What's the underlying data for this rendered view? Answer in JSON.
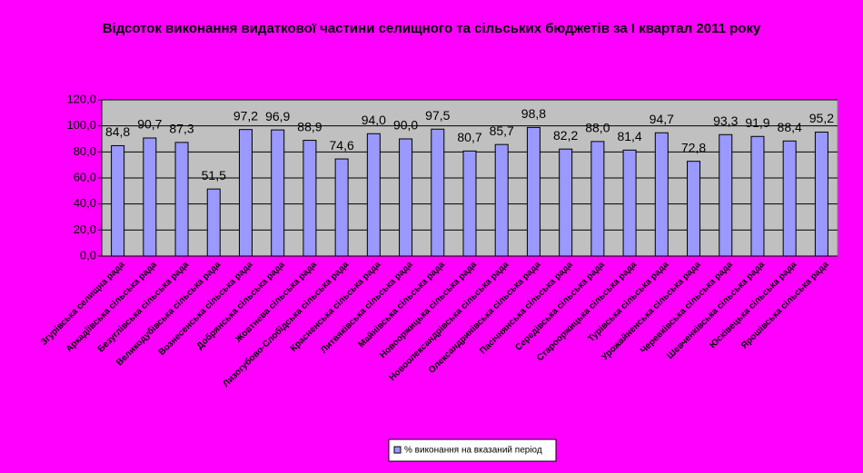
{
  "chart_data": {
    "type": "bar",
    "title": "Відсоток виконання видаткової частини селищного та сільських бюджетів за І квартал 2011 року",
    "categories": [
      "Згурівська селищна рада",
      "Аркадіївська сільська рада",
      "Безуглівська сільська рада",
      "Великодубівська сільська рада",
      "Вознесенська сільська рада",
      "Добрянська сільська рада",
      "Жовтнева сільська рада",
      "Лизогубово-Слобідська сільська рада",
      "Красненська сільська рада",
      "Литвяківська сільська рада",
      "Майнівська сільська рада",
      "Новооржицька сільська рада",
      "Новоолександрівська сільська рада",
      "Олександринівська сільська рада",
      "Пасічнянська сільська рада",
      "Середівська сільська рада",
      "Старооржицька сільська рада",
      "Турівська сільська рада",
      "Урожайненська сільська рада",
      "Черевківська сільська рада",
      "Шевченківська сільська рада",
      "Юсківецька сільська рада",
      "Ярошівська сільська рада"
    ],
    "series": [
      {
        "name": "% виконання на вказаний період",
        "color": "#9999ff",
        "values": [
          84.8,
          90.7,
          87.3,
          51.5,
          97.2,
          96.9,
          88.9,
          74.6,
          94.0,
          90.0,
          97.5,
          80.7,
          85.7,
          98.8,
          82.2,
          88.0,
          81.4,
          94.7,
          72.8,
          93.3,
          91.9,
          88.4,
          95.2
        ],
        "value_labels": [
          "84,8",
          "90,7",
          "87,3",
          "51,5",
          "97,2",
          "96,9",
          "88,9",
          "74,6",
          "94,0",
          "90,0",
          "97,5",
          "80,7",
          "85,7",
          "98,8",
          "82,2",
          "88,0",
          "81,4",
          "94,7",
          "72,8",
          "93,3",
          "91,9",
          "88,4",
          "95,2"
        ]
      }
    ],
    "ylim": [
      0,
      120
    ],
    "yticks": [
      {
        "value": 0,
        "label": "0,0"
      },
      {
        "value": 20,
        "label": "20,0"
      },
      {
        "value": 40,
        "label": "40,0"
      },
      {
        "value": 60,
        "label": "60,0"
      },
      {
        "value": 80,
        "label": "80,0"
      },
      {
        "value": 100,
        "label": "100,0"
      },
      {
        "value": 120,
        "label": "120,0"
      }
    ],
    "grid": true,
    "legend": "bottom",
    "plot_color": "#c0c0c0",
    "background": "#ff00ff"
  }
}
